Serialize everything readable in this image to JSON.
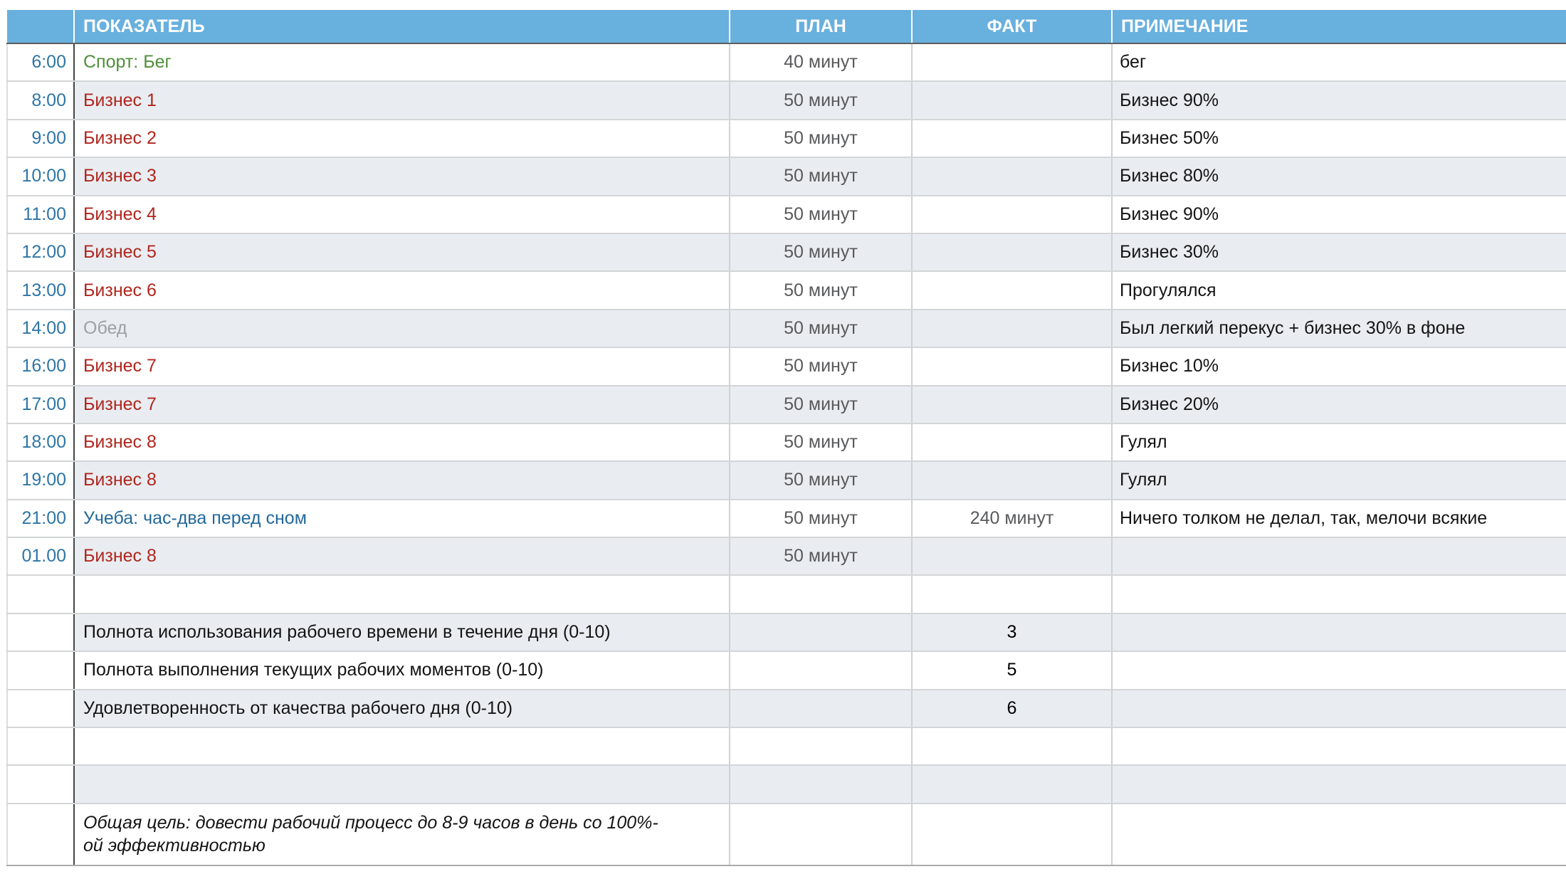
{
  "table": {
    "columns": {
      "time_header": "",
      "indicator": "ПОКАЗАТЕЛЬ",
      "plan": "ПЛАН",
      "fact": "ФАКТ",
      "note": "ПРИМЕЧАНИЕ"
    },
    "rows": [
      {
        "time": "6:00",
        "indicator": "Спорт: Бег",
        "plan": "40 минут",
        "fact": "",
        "note": "бег"
      },
      {
        "time": "8:00",
        "indicator": "Бизнес 1",
        "plan": "50 минут",
        "fact": "",
        "note": "Бизнес 90%"
      },
      {
        "time": "9:00",
        "indicator": "Бизнес 2",
        "plan": "50 минут",
        "fact": "",
        "note": "Бизнес 50%"
      },
      {
        "time": "10:00",
        "indicator": "Бизнес 3",
        "plan": "50 минут",
        "fact": "",
        "note": "Бизнес 80%"
      },
      {
        "time": "11:00",
        "indicator": "Бизнес 4",
        "plan": "50 минут",
        "fact": "",
        "note": "Бизнес 90%"
      },
      {
        "time": "12:00",
        "indicator": "Бизнес 5",
        "plan": "50 минут",
        "fact": "",
        "note": "Бизнес 30%"
      },
      {
        "time": "13:00",
        "indicator": "Бизнес 6",
        "plan": "50 минут",
        "fact": "",
        "note": "Прогулялся"
      },
      {
        "time": "14:00",
        "indicator": "Обед",
        "plan": "50 минут",
        "fact": "",
        "note": "Был легкий перекус + бизнес 30% в фоне"
      },
      {
        "time": "16:00",
        "indicator": "Бизнес 7",
        "plan": "50 минут",
        "fact": "",
        "note": "Бизнес 10%"
      },
      {
        "time": "17:00",
        "indicator": "Бизнес 7",
        "plan": "50 минут",
        "fact": "",
        "note": "Бизнес 20%"
      },
      {
        "time": "18:00",
        "indicator": "Бизнес 8",
        "plan": "50 минут",
        "fact": "",
        "note": "Гулял"
      },
      {
        "time": "19:00",
        "indicator": "Бизнес 8",
        "plan": "50 минут",
        "fact": "",
        "note": "Гулял"
      },
      {
        "time": "21:00",
        "indicator": "Учеба: час-два перед сном",
        "plan": "50 минут",
        "fact": "240 минут",
        "note": "Ничего толком не делал, так, мелочи всякие"
      },
      {
        "time": "01.00",
        "indicator": "Бизнес 8",
        "plan": "50 минут",
        "fact": "",
        "note": ""
      },
      {
        "time": "",
        "indicator": "",
        "plan": "",
        "fact": "",
        "note": ""
      },
      {
        "time": "",
        "indicator": "Полнота использования рабочего времени в течение дня (0-10)",
        "plan": "",
        "fact": "3",
        "note": ""
      },
      {
        "time": "",
        "indicator": "Полнота выполнения текущих рабочих моментов (0-10)",
        "plan": "",
        "fact": "5",
        "note": ""
      },
      {
        "time": "",
        "indicator": "Удовлетворенность от качества рабочего дня (0-10)",
        "plan": "",
        "fact": "6",
        "note": ""
      },
      {
        "time": "",
        "indicator": "",
        "plan": "",
        "fact": "",
        "note": ""
      },
      {
        "time": "",
        "indicator": "",
        "plan": "",
        "fact": "",
        "note": ""
      },
      {
        "time": "",
        "indicator": "Общая цель: довести рабочий процесс до 8-9 часов в день со 100%-\nой эффективностью",
        "plan": "",
        "fact": "",
        "note": ""
      }
    ]
  },
  "colors": {
    "header_bg": "#68b0de",
    "header_text": "#ffffff",
    "stripe_bg": "#e9edf1",
    "time_text": "#2e76a6",
    "sport_green": "#4f8f39",
    "business_red": "#b0261d",
    "lunch_gray": "#9ba1a6",
    "study_blue": "#22699c",
    "minutes_gray": "#58595b",
    "note_text": "#141414"
  }
}
